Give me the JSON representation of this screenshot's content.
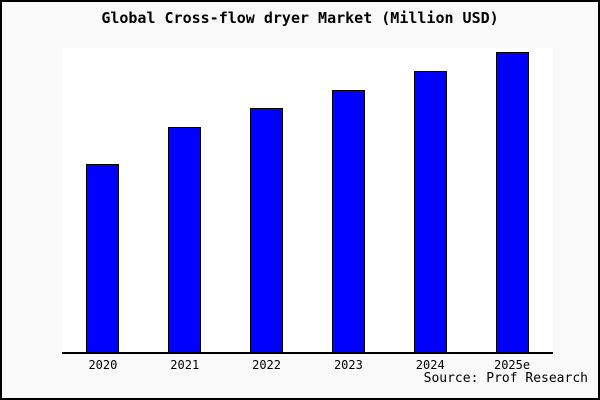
{
  "window": {
    "background_color": "#f9f9f9",
    "border_color": "#000000",
    "plot_background_color": "#ffffff"
  },
  "source": {
    "label": "Source: Prof Research"
  },
  "chart_data": {
    "type": "bar",
    "title": "Global Cross-flow dryer Market (Million USD)",
    "categories": [
      "2020",
      "2021",
      "2022",
      "2023",
      "2024",
      "2025e"
    ],
    "values": [
      188,
      225,
      244,
      262,
      281,
      300
    ],
    "value_note": "relative bar heights in px; chart shows no numeric y-axis",
    "xlabel": "",
    "ylabel": "",
    "ylim": [
      0,
      304
    ],
    "grid": false,
    "legend": false,
    "y_axis_shown": false,
    "bar_color": "#0000ff",
    "bar_border_color": "#000000",
    "axis_color": "#000000"
  }
}
